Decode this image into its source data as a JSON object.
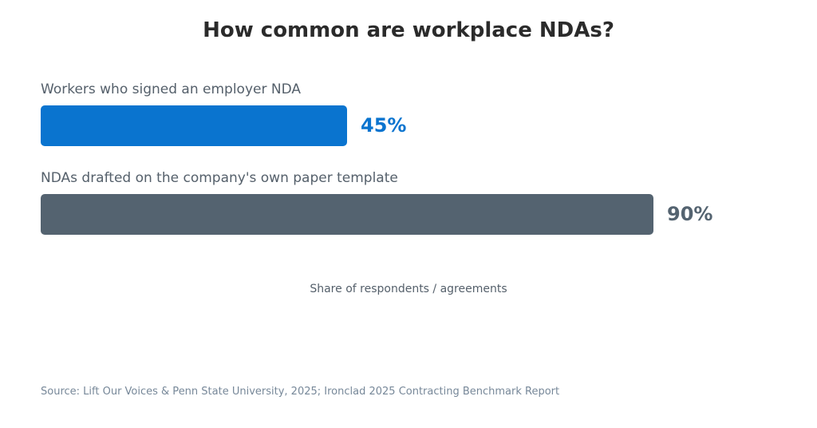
{
  "chart_data": {
    "type": "bar",
    "orientation": "horizontal",
    "title": "How common are workplace NDAs?",
    "categories": [
      "Workers who signed an employer NDA",
      "NDAs drafted on the company's own paper template"
    ],
    "values": [
      45,
      90
    ],
    "value_labels": [
      "45%",
      "90%"
    ],
    "colors": [
      "#0a74cf",
      "#546370"
    ],
    "xlim": [
      0,
      100
    ],
    "axis_caption": "Share of respondents / agreements",
    "grid": false,
    "source": "Source: Lift Our Voices & Penn State University, 2025; Ironclad 2025 Contracting Benchmark Report"
  }
}
